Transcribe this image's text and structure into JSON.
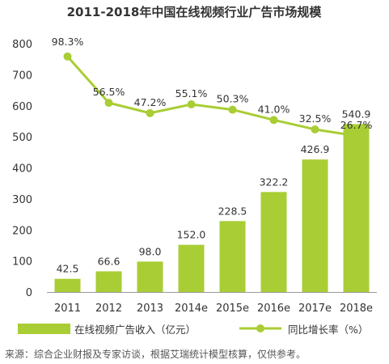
{
  "chart_data": {
    "type": "bar",
    "title": "2011-2018年中国在线视频行业广告市场规模",
    "categories": [
      "2011",
      "2012",
      "2013",
      "2014e",
      "2015e",
      "2016e",
      "2017e",
      "2018e"
    ],
    "series": [
      {
        "name": "在线视频广告收入（亿元）",
        "type": "bar",
        "values": [
          42.5,
          66.6,
          98.0,
          152.0,
          228.5,
          322.2,
          426.9,
          540.9
        ],
        "labels": [
          "42.5",
          "66.6",
          "98.0",
          "152.0",
          "228.5",
          "322.2",
          "426.9",
          "540.9"
        ],
        "color": "#a9cd34"
      },
      {
        "name": "同比增长率（%）",
        "type": "line",
        "values": [
          98.3,
          56.5,
          47.2,
          55.1,
          50.3,
          41.0,
          32.5,
          26.7
        ],
        "labels": [
          "98.3%",
          "56.5%",
          "47.2%",
          "55.1%",
          "50.3%",
          "41.0%",
          "32.5%",
          "26.7%"
        ],
        "color": "#a9cd34"
      }
    ],
    "ylim": [
      0,
      800
    ],
    "yticks": [
      "0",
      "100",
      "200",
      "300",
      "400",
      "500",
      "600",
      "700",
      "800"
    ],
    "ylabel": "",
    "xlabel": "",
    "grid": false,
    "legend_position": "bottom",
    "source_note": "来源：综合企业财报及专家访谈，根据艾瑞统计模型核算，仅供参考。"
  }
}
